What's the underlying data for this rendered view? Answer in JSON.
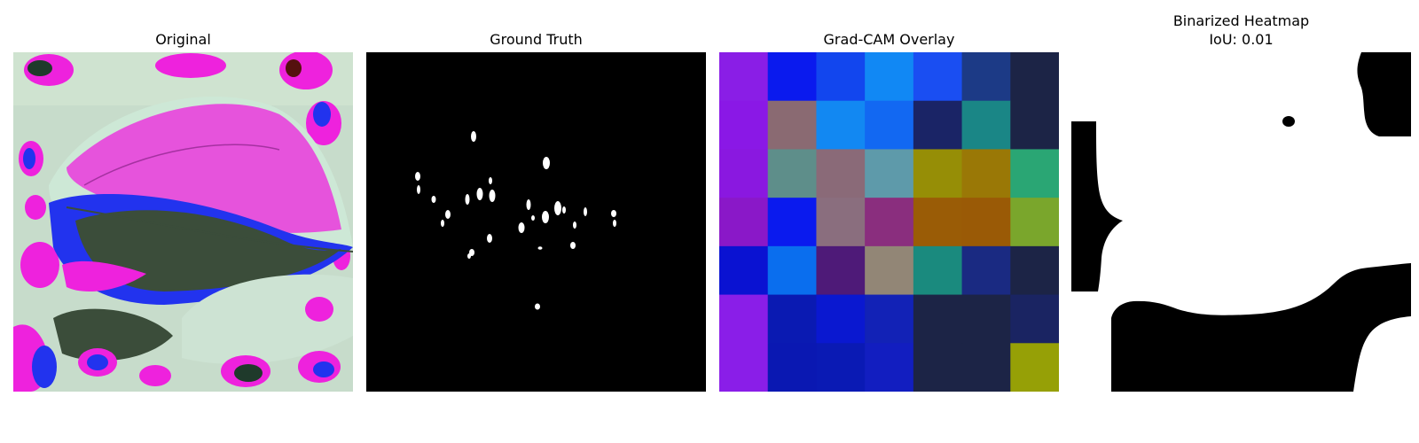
{
  "panels": {
    "original": {
      "title": "Original"
    },
    "ground_truth": {
      "title": "Ground Truth"
    },
    "gradcam": {
      "title": "Grad-CAM Overlay",
      "grid_colors": [
        [
          "#8a1ee6",
          "#0a1aee",
          "#1246ee",
          "#1188f4",
          "#1a4ef2",
          "#1c3a86",
          "#1c2446"
        ],
        [
          "#8a18e6",
          "#8a6a72",
          "#1288f2",
          "#1268f2",
          "#1a2466",
          "#1a8686",
          "#1c2446"
        ],
        [
          "#8a18e0",
          "#5e8e8a",
          "#8a6a78",
          "#5e9aaa",
          "#968e06",
          "#9a7806",
          "#2aa674"
        ],
        [
          "#8a18c8",
          "#0a1aee",
          "#8a6e7e",
          "#8a2e7e",
          "#9a5c06",
          "#9a5a06",
          "#7aa62c"
        ],
        [
          "#0a12d2",
          "#0a6eee",
          "#4e1a78",
          "#928676",
          "#1a8a7e",
          "#1a2a82",
          "#1c2446"
        ],
        [
          "#8a1ee8",
          "#0a1ab2",
          "#0a18d0",
          "#1222b6",
          "#1c2446",
          "#1c2446",
          "#1a2462"
        ],
        [
          "#8a1ee8",
          "#0a18b2",
          "#0a1ab4",
          "#121ec0",
          "#1c2446",
          "#1c2446",
          "#96a006"
        ]
      ]
    },
    "binarized": {
      "title": "Binarized Heatmap\nIoU: 0.01"
    }
  }
}
